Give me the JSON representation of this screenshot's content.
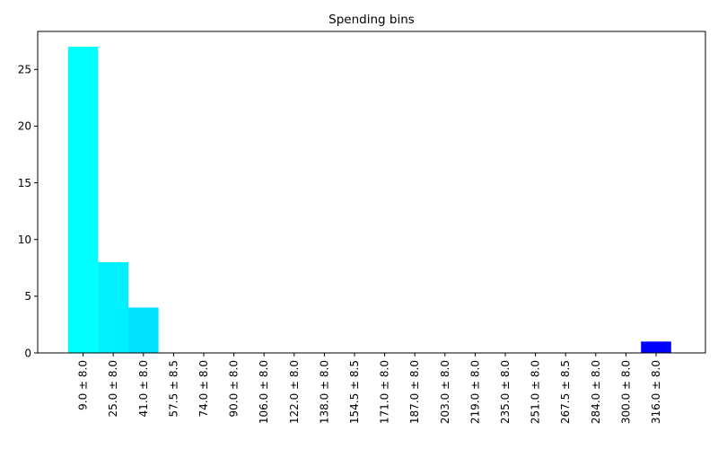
{
  "chart_data": {
    "type": "bar",
    "title": "Spending bins",
    "xlabel": "",
    "ylabel": "",
    "categories": [
      "9.0 ± 8.0",
      "25.0 ± 8.0",
      "41.0 ± 8.0",
      "57.5 ± 8.5",
      "74.0 ± 8.0",
      "90.0 ± 8.0",
      "106.0 ± 8.0",
      "122.0 ± 8.0",
      "138.0 ± 8.0",
      "154.5 ± 8.5",
      "171.0 ± 8.0",
      "187.0 ± 8.0",
      "203.0 ± 8.0",
      "219.0 ± 8.0",
      "235.0 ± 8.0",
      "251.0 ± 8.0",
      "267.5 ± 8.5",
      "284.0 ± 8.0",
      "300.0 ± 8.0",
      "316.0 ± 8.0"
    ],
    "values": [
      27,
      8,
      4,
      0,
      0,
      0,
      0,
      0,
      0,
      0,
      0,
      0,
      0,
      0,
      0,
      0,
      0,
      0,
      0,
      1
    ],
    "bar_colors": [
      "#00ffff",
      "#00f0ff",
      "#00e0ff",
      "#00d0ff",
      "#00c0ff",
      "#00b0ff",
      "#00a0ff",
      "#0090ff",
      "#0080ff",
      "#0070ff",
      "#0060ff",
      "#0050ff",
      "#0040ff",
      "#0030ff",
      "#0020ff",
      "#0018ff",
      "#0010ff",
      "#0008ff",
      "#0004ff",
      "#0000ff"
    ],
    "ylim": [
      0,
      28.35
    ],
    "yticks": [
      0,
      5,
      10,
      15,
      20,
      25
    ],
    "grid": false
  }
}
